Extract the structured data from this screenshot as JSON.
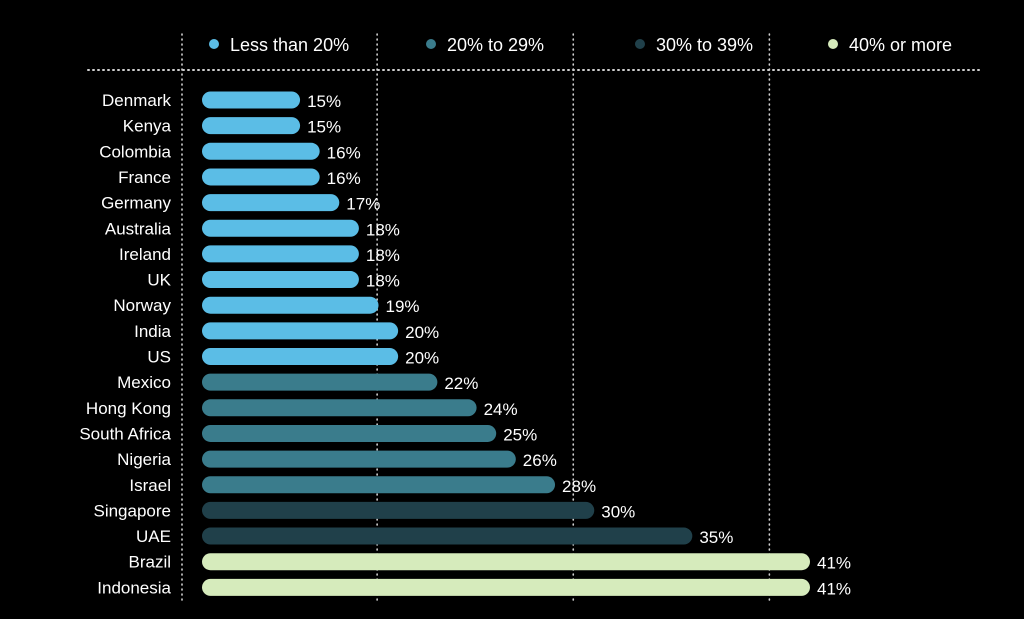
{
  "chart_data": {
    "type": "bar",
    "orientation": "horizontal",
    "categories": [
      "Denmark",
      "Kenya",
      "Colombia",
      "France",
      "Germany",
      "Australia",
      "Ireland",
      "UK",
      "Norway",
      "India",
      "US",
      "Mexico",
      "Hong Kong",
      "South Africa",
      "Nigeria",
      "Israel",
      "Singapore",
      "UAE",
      "Brazil",
      "Indonesia"
    ],
    "values": [
      15,
      15,
      16,
      16,
      17,
      18,
      18,
      18,
      19,
      20,
      20,
      22,
      24,
      25,
      26,
      28,
      30,
      35,
      41,
      41
    ],
    "value_labels": [
      "15%",
      "15%",
      "16%",
      "16%",
      "17%",
      "18%",
      "18%",
      "18%",
      "19%",
      "20%",
      "20%",
      "22%",
      "24%",
      "25%",
      "26%",
      "28%",
      "30%",
      "35%",
      "41%",
      "41%"
    ],
    "bar_groups": [
      "lt20",
      "lt20",
      "lt20",
      "lt20",
      "lt20",
      "lt20",
      "lt20",
      "lt20",
      "lt20",
      "lt20",
      "lt20",
      "20to29",
      "20to29",
      "20to29",
      "20to29",
      "20to29",
      "30to39",
      "30to39",
      "40plus",
      "40plus"
    ],
    "legend": [
      {
        "key": "lt20",
        "label": "Less than 20%",
        "color": "#5bbde6"
      },
      {
        "key": "20to29",
        "label": "20% to 29%",
        "color": "#3a7c8c"
      },
      {
        "key": "30to39",
        "label": "30% to 39%",
        "color": "#20404a"
      },
      {
        "key": "40plus",
        "label": "40% or more",
        "color": "#d6ebbc"
      }
    ],
    "legend_position": "top",
    "xlim": [
      10,
      41
    ],
    "gridlines": [
      10,
      20,
      30,
      40
    ],
    "grid": true,
    "title": "",
    "xlabel": "",
    "ylabel": "",
    "colors": {
      "background": "#000000",
      "text": "#ffffff",
      "grid": "#d0d0d0"
    }
  }
}
